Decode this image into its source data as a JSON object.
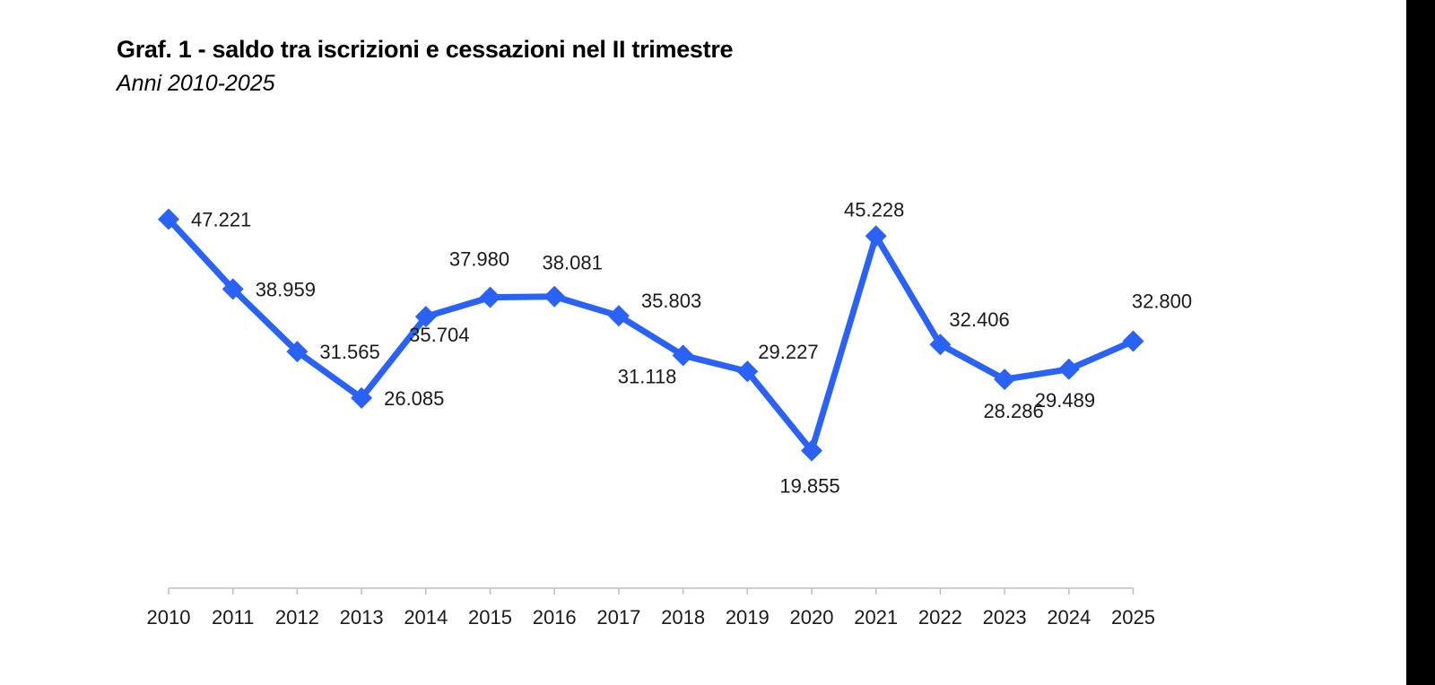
{
  "page": {
    "title": "Graf. 1 - saldo tra iscrizioni e cessazioni nel II trimestre",
    "subtitle": "Anni 2010-2025"
  },
  "chart_data": {
    "type": "line",
    "title": "Graf. 1 - saldo tra iscrizioni e cessazioni nel II trimestre",
    "subtitle": "Anni 2010-2025",
    "categories": [
      "2010",
      "2011",
      "2012",
      "2013",
      "2014",
      "2015",
      "2016",
      "2017",
      "2018",
      "2019",
      "2020",
      "2021",
      "2022",
      "2023",
      "2024",
      "2025"
    ],
    "series": [
      {
        "values": [
          47221,
          38959,
          31565,
          26085,
          35704,
          37980,
          38081,
          35803,
          31118,
          29227,
          19855,
          45228,
          32406,
          28286,
          29489,
          32800
        ],
        "labels": [
          "47.221",
          "38.959",
          "31.565",
          "26.085",
          "35.704",
          "37.980",
          "38.081",
          "35.803",
          "31.118",
          "29.227",
          "19.855",
          "45.228",
          "32.406",
          "28.286",
          "29.489",
          "32.800"
        ],
        "color": "#2962f5",
        "marker": "diamond"
      }
    ],
    "xlabel": "",
    "ylabel": "",
    "y_axis_visible": false,
    "grid": false,
    "legend": false
  }
}
